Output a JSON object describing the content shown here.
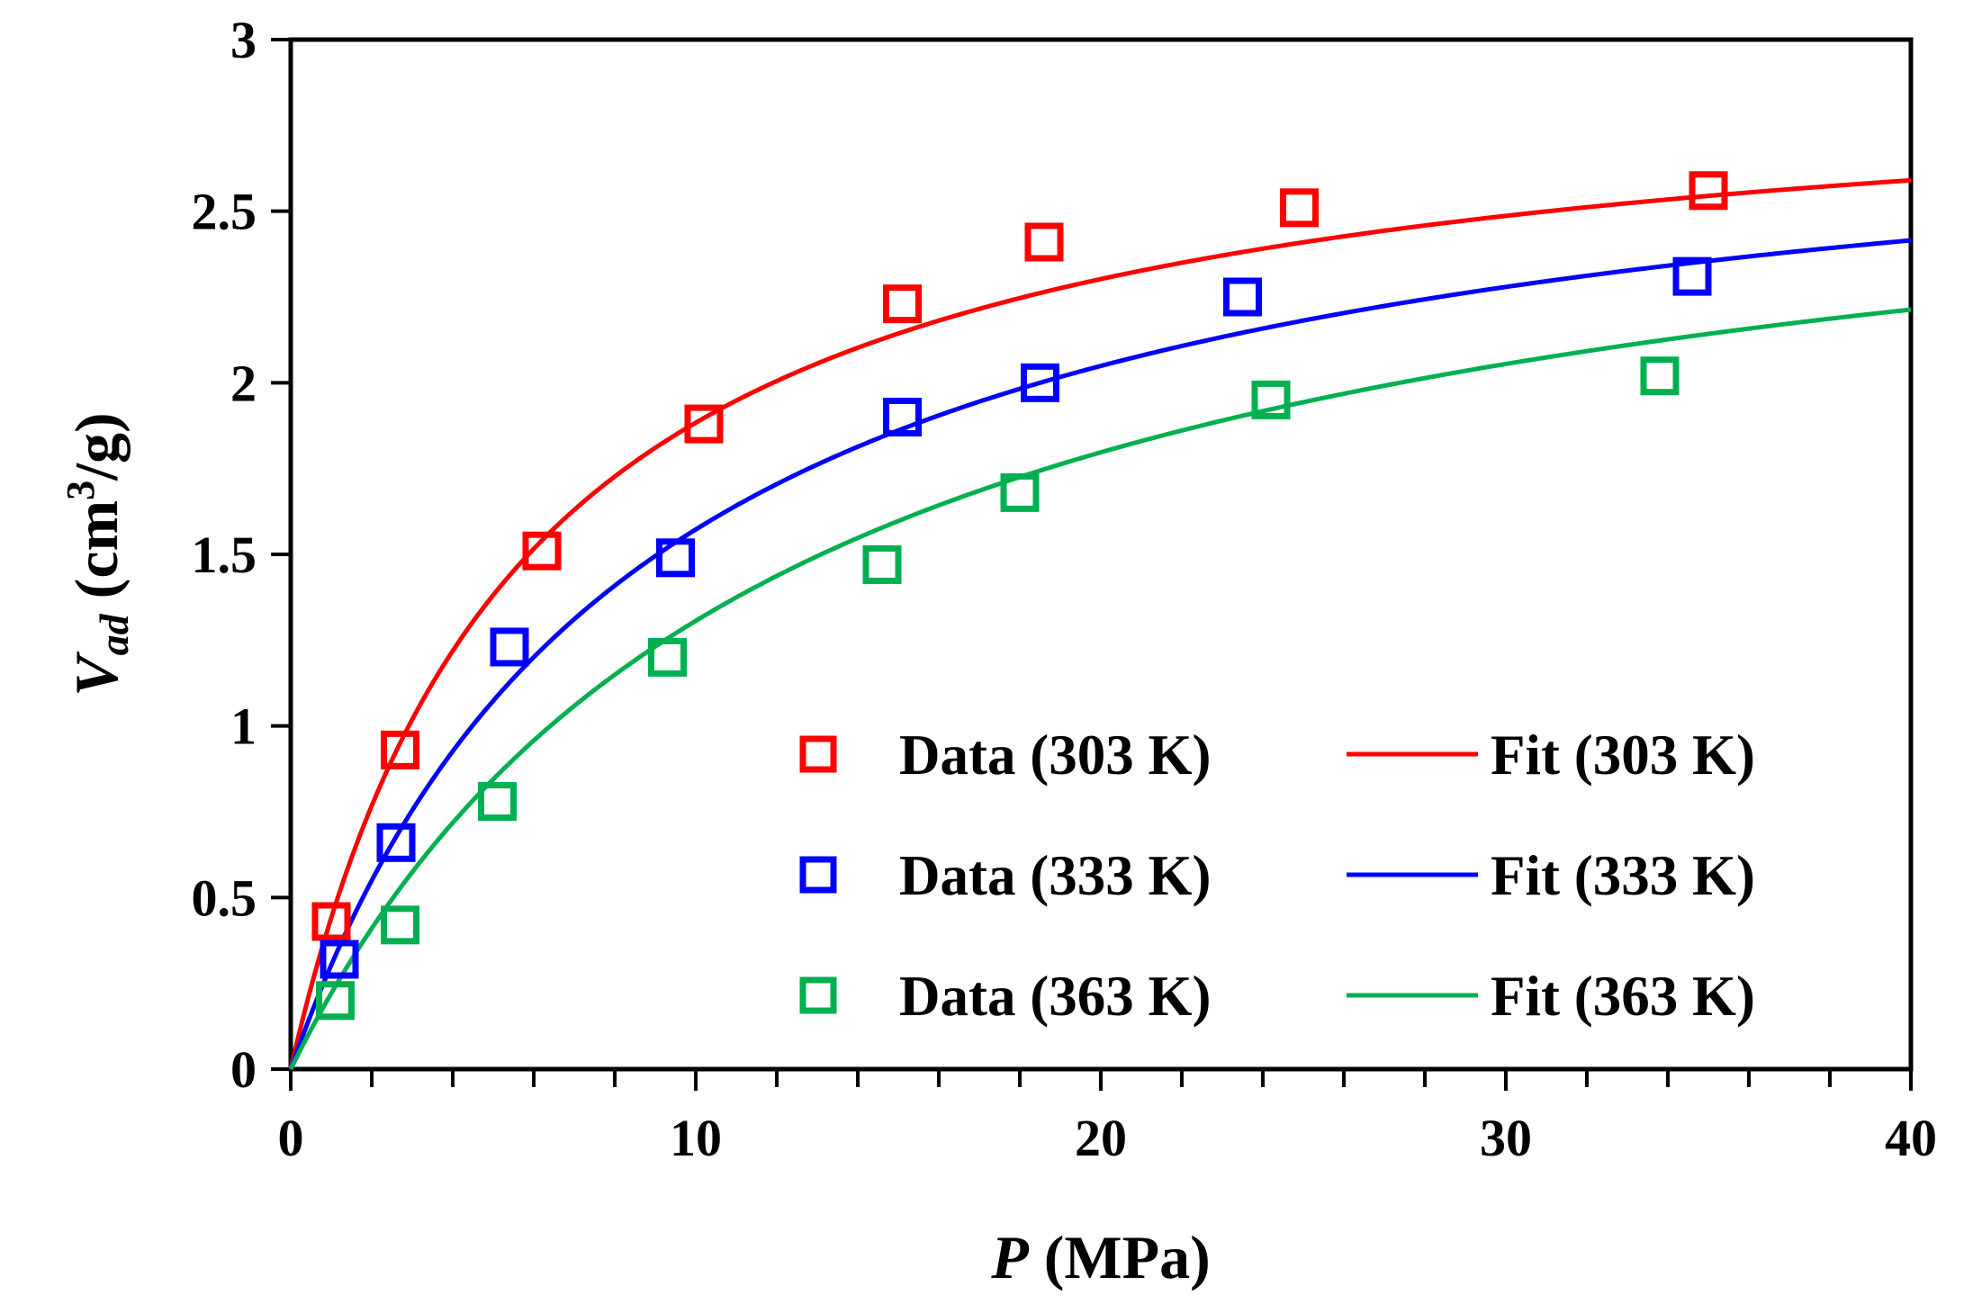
{
  "chart_data": {
    "type": "scatter",
    "title": "",
    "xlabel": {
      "symbol": "P",
      "unit": " (MPa)"
    },
    "ylabel": {
      "symbol": "V",
      "subscript": "ad",
      "unit_pre": " (cm",
      "superscript": "3",
      "unit_post": "/g)"
    },
    "xlim": [
      0,
      40
    ],
    "ylim": [
      0,
      3
    ],
    "x_ticks": [
      0,
      10,
      20,
      30,
      40
    ],
    "y_ticks": [
      0,
      0.5,
      1,
      1.5,
      2,
      2.5,
      3
    ],
    "y_tick_labels": [
      "0",
      "0.5",
      "1",
      "1.5",
      "2",
      "2.5",
      "3"
    ],
    "x_minor_step": 2,
    "legend_position": "lower-right",
    "series": [
      {
        "name": "Data (303 K)",
        "fit_name": "Fit (303 K)",
        "color": "#ff0000",
        "x": [
          1.0,
          2.7,
          6.2,
          10.2,
          15.1,
          18.6,
          24.9,
          35.0
        ],
        "y": [
          0.43,
          0.93,
          1.51,
          1.88,
          2.23,
          2.41,
          2.51,
          2.56
        ],
        "fit": {
          "model": "langmuir",
          "vmax": 2.96,
          "b": 0.175
        }
      },
      {
        "name": "Data (333 K)",
        "fit_name": "Fit (333 K)",
        "color": "#0000ff",
        "x": [
          1.2,
          2.6,
          5.4,
          9.5,
          15.1,
          18.5,
          23.5,
          34.6
        ],
        "y": [
          0.32,
          0.66,
          1.23,
          1.49,
          1.9,
          2.0,
          2.25,
          2.31
        ],
        "fit": {
          "model": "langmuir",
          "vmax": 2.94,
          "b": 0.115
        }
      },
      {
        "name": "Data (363 K)",
        "fit_name": "Fit (363 K)",
        "color": "#00b050",
        "x": [
          1.1,
          2.7,
          5.1,
          9.3,
          14.6,
          18.0,
          24.2,
          33.8
        ],
        "y": [
          0.2,
          0.42,
          0.78,
          1.2,
          1.47,
          1.68,
          1.95,
          2.02
        ],
        "fit": {
          "model": "langmuir",
          "vmax": 2.88,
          "b": 0.083
        }
      }
    ]
  }
}
